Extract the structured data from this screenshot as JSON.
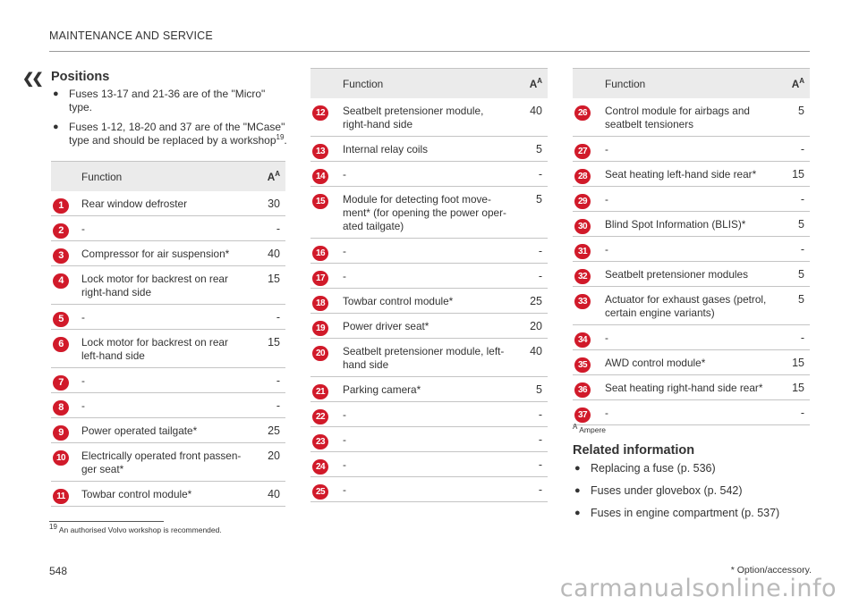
{
  "header": {
    "section": "MAINTENANCE AND SERVICE",
    "back_glyph": "❮❮"
  },
  "positions": {
    "title": "Positions",
    "bullets": [
      {
        "text": "Fuses 13-17 and 21-36 are of the \"Micro\" type."
      },
      {
        "text": "Fuses 1-12, 18-20 and 37 are of the \"MCase\" type and should be replaced by a workshop",
        "sup": "19",
        "end": "."
      }
    ]
  },
  "table_headers": {
    "function": "Function",
    "amp": "A",
    "amp_sup": "A"
  },
  "table1": [
    {
      "num": "1",
      "func": "Rear window defroster",
      "amp": "30"
    },
    {
      "num": "2",
      "func": "-",
      "amp": "-"
    },
    {
      "num": "3",
      "func": "Compressor for air suspension*",
      "amp": "40"
    },
    {
      "num": "4",
      "func": "Lock motor for backrest on rear right-hand side",
      "amp": "15"
    },
    {
      "num": "5",
      "func": "-",
      "amp": "-"
    },
    {
      "num": "6",
      "func": "Lock motor for backrest on rear left-hand side",
      "amp": "15"
    },
    {
      "num": "7",
      "func": "-",
      "amp": "-"
    },
    {
      "num": "8",
      "func": "-",
      "amp": "-"
    },
    {
      "num": "9",
      "func": "Power operated tailgate*",
      "amp": "25"
    },
    {
      "num": "10",
      "func": "Electrically operated front passen-ger seat*",
      "amp": "20"
    },
    {
      "num": "11",
      "func": "Towbar control module*",
      "amp": "40"
    }
  ],
  "table2": [
    {
      "num": "12",
      "func": "Seatbelt pretensioner module, right-hand side",
      "amp": "40"
    },
    {
      "num": "13",
      "func": "Internal relay coils",
      "amp": "5"
    },
    {
      "num": "14",
      "func": "-",
      "amp": "-"
    },
    {
      "num": "15",
      "func": "Module for detecting foot move-ment* (for opening the power oper-ated tailgate)",
      "amp": "5"
    },
    {
      "num": "16",
      "func": "-",
      "amp": "-"
    },
    {
      "num": "17",
      "func": "-",
      "amp": "-"
    },
    {
      "num": "18",
      "func": "Towbar control module*",
      "amp": "25"
    },
    {
      "num": "19",
      "func": "Power driver seat*",
      "amp": "20"
    },
    {
      "num": "20",
      "func": "Seatbelt pretensioner module, left-hand side",
      "amp": "40"
    },
    {
      "num": "21",
      "func": "Parking camera*",
      "amp": "5"
    },
    {
      "num": "22",
      "func": "-",
      "amp": "-"
    },
    {
      "num": "23",
      "func": "-",
      "amp": "-"
    },
    {
      "num": "24",
      "func": "-",
      "amp": "-"
    },
    {
      "num": "25",
      "func": "-",
      "amp": "-"
    }
  ],
  "table3": [
    {
      "num": "26",
      "func": "Control module for airbags and seatbelt tensioners",
      "amp": "5"
    },
    {
      "num": "27",
      "func": "-",
      "amp": "-"
    },
    {
      "num": "28",
      "func": "Seat heating left-hand side rear*",
      "amp": "15"
    },
    {
      "num": "29",
      "func": "-",
      "amp": "-"
    },
    {
      "num": "30",
      "func": "Blind Spot Information (BLIS)*",
      "amp": "5"
    },
    {
      "num": "31",
      "func": "-",
      "amp": "-"
    },
    {
      "num": "32",
      "func": "Seatbelt pretensioner modules",
      "amp": "5"
    },
    {
      "num": "33",
      "func": "Actuator for exhaust gases (petrol, certain engine variants)",
      "amp": "5"
    },
    {
      "num": "34",
      "func": "-",
      "amp": "-"
    },
    {
      "num": "35",
      "func": "AWD control module*",
      "amp": "15"
    },
    {
      "num": "36",
      "func": "Seat heating right-hand side rear*",
      "amp": "15"
    },
    {
      "num": "37",
      "func": "-",
      "amp": "-"
    }
  ],
  "footnote_a": {
    "mark": "A",
    "text": "Ampere"
  },
  "related": {
    "title": "Related information",
    "items": [
      "Replacing a fuse (p. 536)",
      "Fuses under glovebox (p. 542)",
      "Fuses in engine compartment (p. 537)"
    ]
  },
  "footnote19": {
    "mark": "19",
    "text": "An authorised Volvo workshop is recommended."
  },
  "footer": {
    "page": "548",
    "option_note": "* Option/accessory."
  },
  "watermark": "carmanualsonline.info",
  "colors": {
    "badge": "#d11a2a",
    "header_bg": "#ebebeb"
  }
}
